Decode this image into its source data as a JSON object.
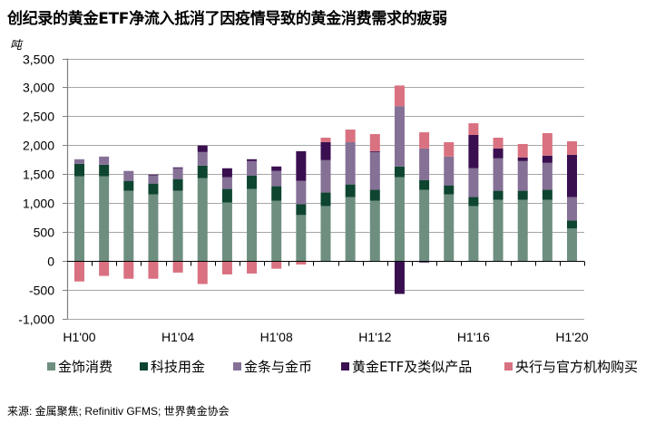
{
  "title": "创纪录的黄金ETF净流入抵消了因疫情导致的黄金消费需求的疲弱",
  "source": "来源: 金属聚焦; Refinitiv GFMS; 世界黄金协会",
  "chart_data": {
    "type": "bar",
    "stacked": true,
    "title": "创纪录的黄金ETF净流入抵消了因疫情导致的黄金消费需求的疲弱",
    "xlabel": "",
    "ylabel": "吨",
    "ylim": [
      -1000,
      3500
    ],
    "yticks": [
      -1000,
      -500,
      0,
      500,
      1000,
      1500,
      2000,
      2500,
      3000,
      3500
    ],
    "ytick_labels": [
      "-1,000",
      "-500",
      "0",
      "500",
      "1,000",
      "1,500",
      "2,000",
      "2,500",
      "3,000",
      "3,500"
    ],
    "grid": true,
    "legend_position": "bottom",
    "categories": [
      "H1'00",
      "H1'01",
      "H1'02",
      "H1'03",
      "H1'04",
      "H1'05",
      "H1'06",
      "H1'07",
      "H1'08",
      "H1'09",
      "H1'10",
      "H1'11",
      "H1'12",
      "H1'13",
      "H1'14",
      "H1'15",
      "H1'16",
      "H1'17",
      "H1'18",
      "H1'19",
      "H1'20"
    ],
    "xtick_labels": [
      {
        "index": 0,
        "label": "H1'00"
      },
      {
        "index": 4,
        "label": "H1'04"
      },
      {
        "index": 8,
        "label": "H1'08"
      },
      {
        "index": 12,
        "label": "H1'12"
      },
      {
        "index": 16,
        "label": "H1'16"
      },
      {
        "index": 20,
        "label": "H1'20"
      }
    ],
    "series": [
      {
        "name": "金饰消费",
        "color": "#6E8F80",
        "values": [
          1464,
          1464,
          1216,
          1154,
          1216,
          1433,
          1014,
          1247,
          1045,
          797,
          952,
          1107,
          1045,
          1449,
          1232,
          1154,
          952,
          1061,
          1061,
          1061,
          564
        ]
      },
      {
        "name": "科技用金",
        "color": "#0E4530",
        "values": [
          218,
          202,
          171,
          186,
          202,
          218,
          233,
          233,
          249,
          186,
          233,
          218,
          187,
          186,
          170,
          155,
          155,
          155,
          155,
          171,
          140
        ]
      },
      {
        "name": "金条与金币",
        "color": "#857096",
        "values": [
          78,
          140,
          171,
          140,
          186,
          233,
          202,
          248,
          264,
          404,
          559,
          729,
          652,
          1041,
          544,
          497,
          497,
          559,
          512,
          465,
          403
        ]
      },
      {
        "name": "黄金ETF及类似产品",
        "color": "#3A0F50",
        "values": [
          0,
          0,
          0,
          15,
          16,
          113,
          155,
          32,
          77,
          512,
          310,
          0,
          15,
          -565,
          -22,
          0,
          575,
          171,
          63,
          125,
          730
        ]
      },
      {
        "name": "央行与官方机构购买",
        "color": "#D97180",
        "values": [
          -350,
          -254,
          -303,
          -303,
          -197,
          -394,
          -228,
          -213,
          -130,
          -57,
          78,
          218,
          295,
          357,
          279,
          248,
          202,
          186,
          232,
          388,
          233
        ]
      }
    ]
  },
  "colors": {
    "grid": "#a6a6a6",
    "axis": "#808080"
  }
}
